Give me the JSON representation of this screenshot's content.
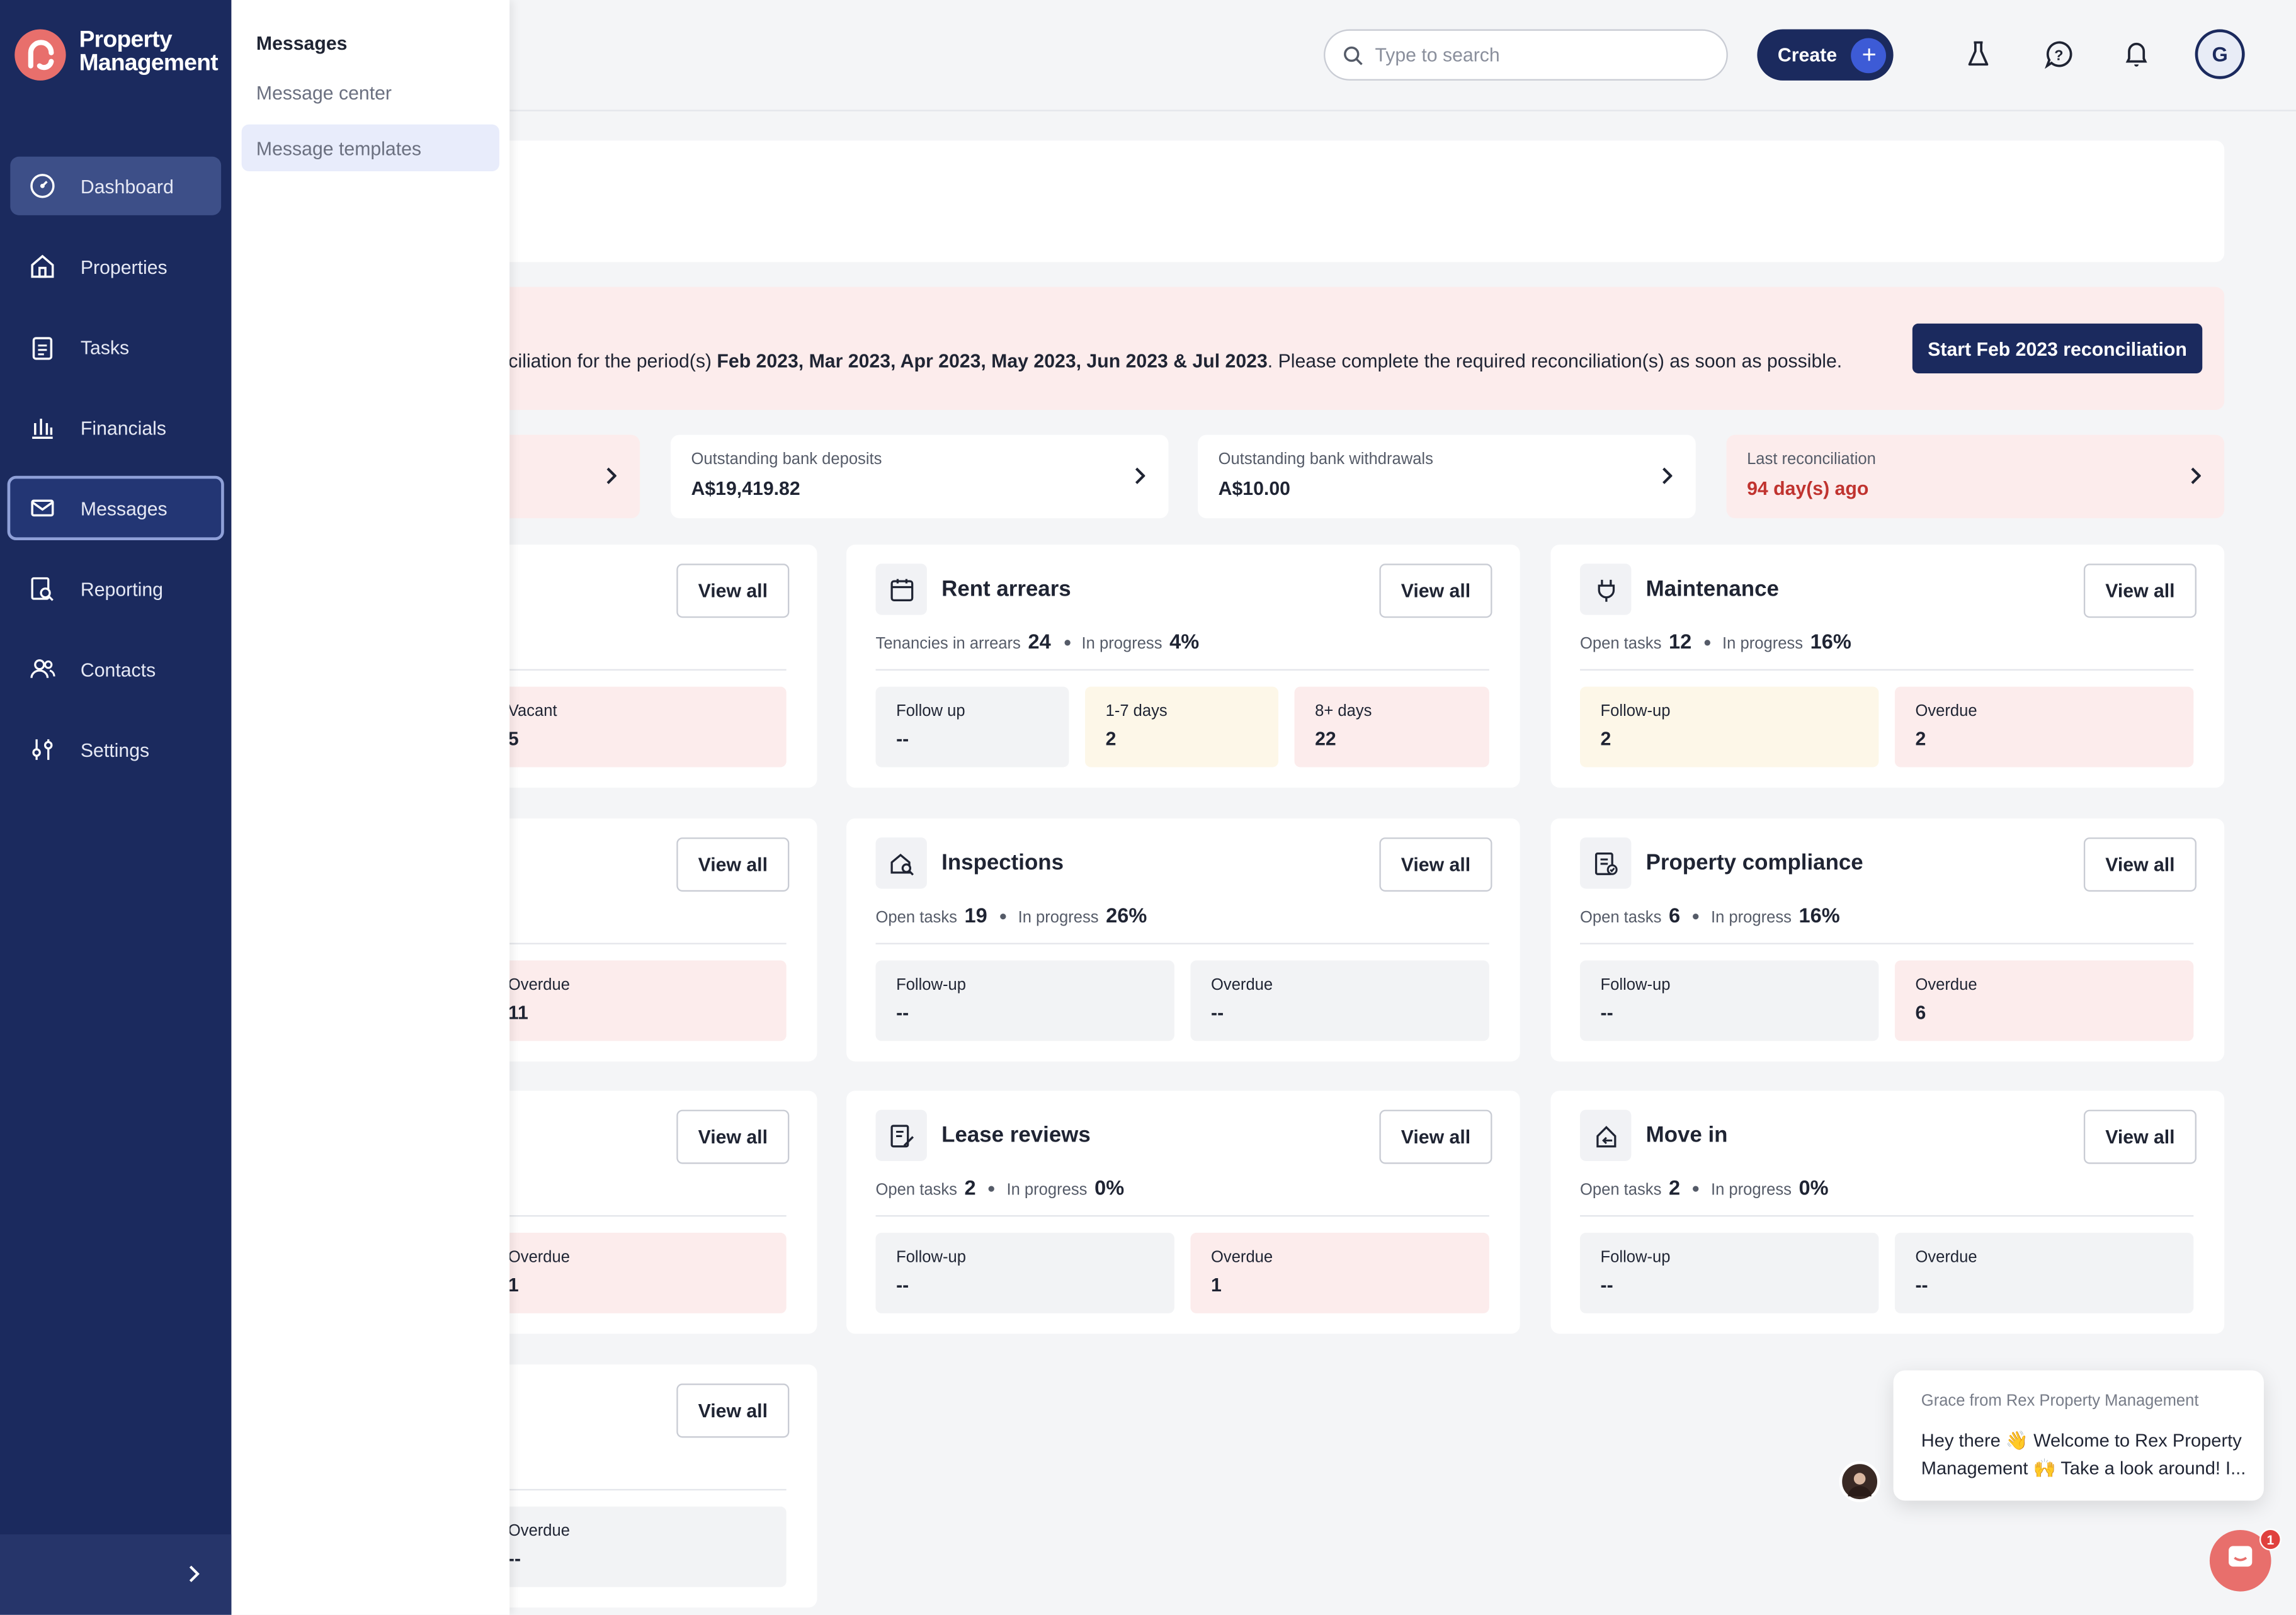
{
  "app": {
    "brand_line1": "Property",
    "brand_line2": "Management"
  },
  "sidebar": {
    "items": [
      {
        "label": "Dashboard",
        "icon": "dashboard-icon"
      },
      {
        "label": "Properties",
        "icon": "home-icon"
      },
      {
        "label": "Tasks",
        "icon": "clipboard-icon"
      },
      {
        "label": "Financials",
        "icon": "bank-icon"
      },
      {
        "label": "Messages",
        "icon": "envelope-icon"
      },
      {
        "label": "Reporting",
        "icon": "report-icon"
      },
      {
        "label": "Contacts",
        "icon": "people-icon"
      },
      {
        "label": "Settings",
        "icon": "sliders-icon"
      }
    ]
  },
  "flyout": {
    "title": "Messages",
    "items": [
      "Message center",
      "Message templates"
    ]
  },
  "topbar": {
    "search_placeholder": "Type to search",
    "create_label": "Create",
    "avatar_initial": "G"
  },
  "banner": {
    "text_prefix": "nciliation for the period(s) ",
    "periods": "Feb 2023, Mar 2023, Apr 2023, May 2023, Jun 2023 & Jul 2023",
    "text_suffix": ". Please complete the required reconciliation(s) as soon as possible.",
    "button": "Start Feb 2023 reconciliation"
  },
  "stats": [
    {
      "label": "Outstanding bank deposits",
      "value": "A$19,419.82"
    },
    {
      "label": "Outstanding bank withdrawals",
      "value": "A$10.00"
    },
    {
      "label": "Last reconciliation",
      "value": "94 day(s) ago"
    }
  ],
  "view_all": "View all",
  "cards": {
    "partial1": {
      "tile": {
        "label": "Vacant",
        "value": "5"
      }
    },
    "partial2": {
      "tile": {
        "label": "Overdue",
        "value": "11"
      }
    },
    "partial3": {
      "tile": {
        "label": "Overdue",
        "value": "1"
      }
    },
    "partial4": {
      "tile": {
        "label": "Overdue",
        "value": "--"
      }
    },
    "rent_arrears": {
      "title": "Rent arrears",
      "m1_label": "Tenancies in arrears",
      "m1_value": "24",
      "m2_label": "In progress",
      "m2_value": "4%",
      "tiles": [
        {
          "label": "Follow up",
          "value": "--"
        },
        {
          "label": "1-7 days",
          "value": "2"
        },
        {
          "label": "8+ days",
          "value": "22"
        }
      ]
    },
    "maintenance": {
      "title": "Maintenance",
      "m1_label": "Open tasks",
      "m1_value": "12",
      "m2_label": "In progress",
      "m2_value": "16%",
      "tiles": [
        {
          "label": "Follow-up",
          "value": "2"
        },
        {
          "label": "Overdue",
          "value": "2"
        }
      ]
    },
    "inspections": {
      "title": "Inspections",
      "m1_label": "Open tasks",
      "m1_value": "19",
      "m2_label": "In progress",
      "m2_value": "26%",
      "tiles": [
        {
          "label": "Follow-up",
          "value": "--"
        },
        {
          "label": "Overdue",
          "value": "--"
        }
      ]
    },
    "compliance": {
      "title": "Property compliance",
      "m1_label": "Open tasks",
      "m1_value": "6",
      "m2_label": "In progress",
      "m2_value": "16%",
      "tiles": [
        {
          "label": "Follow-up",
          "value": "--"
        },
        {
          "label": "Overdue",
          "value": "6"
        }
      ]
    },
    "lease_reviews": {
      "title": "Lease reviews",
      "m1_label": "Open tasks",
      "m1_value": "2",
      "m2_label": "In progress",
      "m2_value": "0%",
      "tiles": [
        {
          "label": "Follow-up",
          "value": "--"
        },
        {
          "label": "Overdue",
          "value": "1"
        }
      ]
    },
    "move_in": {
      "title": "Move in",
      "m1_label": "Open tasks",
      "m1_value": "2",
      "m2_label": "In progress",
      "m2_value": "0%",
      "tiles": [
        {
          "label": "Follow-up",
          "value": "--"
        },
        {
          "label": "Overdue",
          "value": "--"
        }
      ]
    }
  },
  "chat": {
    "from": "Grace from Rex Property Management",
    "message": "Hey there 👋 Welcome to Rex Property Management 🙌 Take a look around! I...",
    "badge": "1"
  },
  "colors": {
    "sidebar": "#1b2a5e",
    "brand": "#e86f6c",
    "alert": "#c0332f"
  }
}
